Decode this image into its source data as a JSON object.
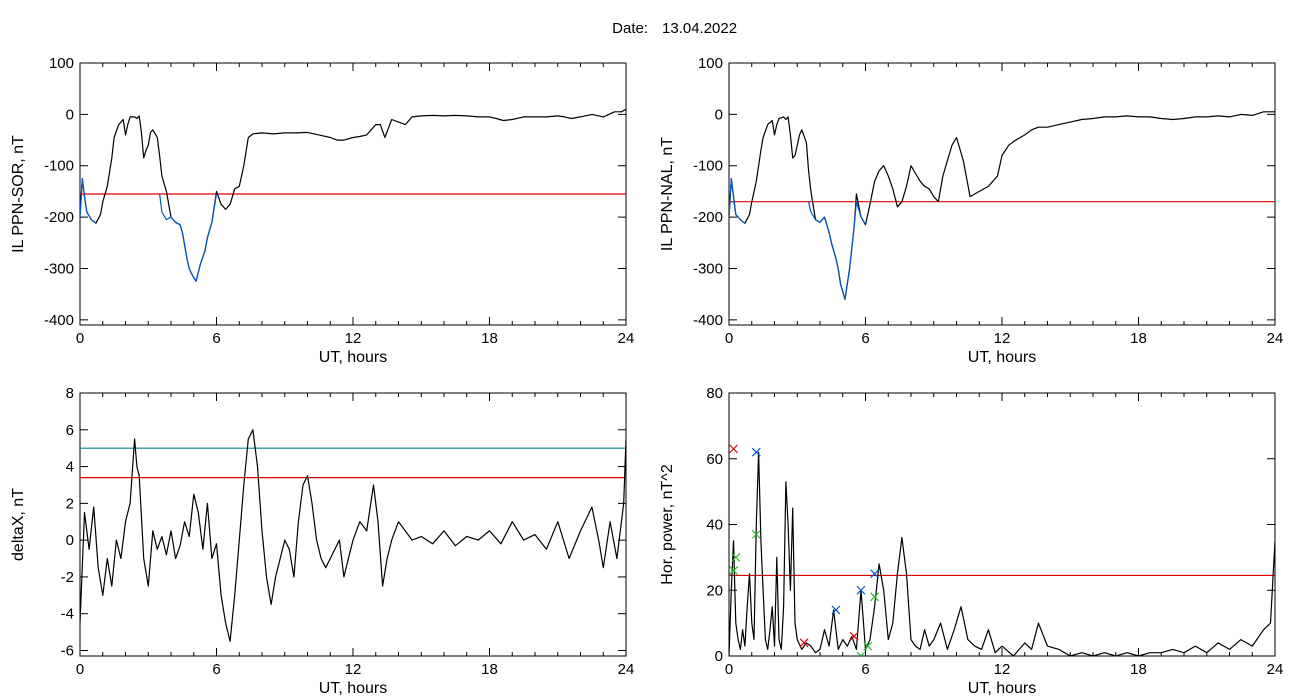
{
  "header": {
    "date_label": "Date:",
    "date_value": "13.04.2022"
  },
  "colors": {
    "primary": "#000000",
    "threshold": "#dd0000",
    "highlight": "#0055cc",
    "teal": "#008b8b",
    "green": "#22bb22"
  },
  "chart_data": [
    {
      "type": "line",
      "xlabel": "UT, hours",
      "ylabel": "IL PPN-SOR, nT",
      "xlim": [
        0,
        24
      ],
      "ylim": [
        -410,
        100
      ],
      "xticks": [
        0,
        6,
        12,
        18,
        24
      ],
      "yticks": [
        -400,
        -300,
        -200,
        -100,
        0,
        100
      ],
      "threshold": -155,
      "series": [
        {
          "color": "#000000",
          "x": [
            0,
            0.1,
            0.2,
            0.3,
            0.5,
            0.7,
            0.9,
            1.0,
            1.2,
            1.4,
            1.5,
            1.7,
            1.9,
            2.0,
            2.1,
            2.2,
            2.4,
            2.5,
            2.6,
            2.7,
            2.8,
            2.9,
            3.0,
            3.1,
            3.2,
            3.4,
            3.5,
            3.6,
            3.8,
            4.0,
            4.2,
            4.4,
            4.5,
            4.7,
            4.8,
            4.9,
            5.1,
            5.3,
            5.5,
            5.6,
            5.8,
            6.0,
            6.2,
            6.4,
            6.6,
            6.8,
            7.0,
            7.2,
            7.4,
            7.6,
            8.0,
            8.5,
            9.0,
            9.5,
            10.0,
            10.5,
            11.0,
            11.3,
            11.6,
            12.0,
            12.3,
            12.6,
            12.8,
            12.9,
            13.0,
            13.2,
            13.4,
            13.7,
            14.0,
            14.3,
            14.6,
            15.0,
            15.5,
            16.0,
            16.5,
            17.0,
            17.5,
            18.0,
            18.3,
            18.6,
            19.0,
            19.5,
            20.0,
            20.5,
            21.0,
            21.3,
            21.6,
            22.0,
            22.5,
            23.0,
            23.5,
            23.8,
            24.0
          ],
          "y": [
            -200,
            -125,
            -160,
            -190,
            -205,
            -212,
            -195,
            -170,
            -140,
            -85,
            -45,
            -20,
            -10,
            -40,
            -20,
            -5,
            -5,
            -8,
            -3,
            -35,
            -85,
            -70,
            -60,
            -35,
            -30,
            -45,
            -80,
            -120,
            -150,
            -200,
            -210,
            -215,
            -230,
            -280,
            -300,
            -310,
            -325,
            -290,
            -265,
            -240,
            -210,
            -150,
            -175,
            -185,
            -175,
            -145,
            -140,
            -100,
            -45,
            -38,
            -36,
            -38,
            -36,
            -36,
            -35,
            -40,
            -45,
            -50,
            -50,
            -45,
            -43,
            -40,
            -30,
            -25,
            -20,
            -20,
            -45,
            -10,
            -15,
            -20,
            -5,
            -3,
            -2,
            -3,
            -2,
            -3,
            -5,
            -5,
            -8,
            -12,
            -10,
            -5,
            -5,
            -5,
            -3,
            -5,
            -8,
            -5,
            0,
            -5,
            5,
            5,
            10
          ]
        },
        {
          "color": "#0055cc",
          "x": [
            0,
            0.1,
            0.2,
            0.3,
            0.5,
            0.7
          ],
          "y": [
            -200,
            -125,
            -160,
            -190,
            -205,
            -212
          ]
        },
        {
          "color": "#0055cc",
          "x": [
            3.5,
            3.6,
            3.8,
            4.0,
            4.2,
            4.4,
            4.5,
            4.7,
            4.8,
            4.9,
            5.1,
            5.3,
            5.5,
            5.6,
            5.8,
            6.0
          ],
          "y": [
            -155,
            -190,
            -205,
            -200,
            -210,
            -215,
            -230,
            -280,
            -300,
            -310,
            -325,
            -290,
            -265,
            -240,
            -210,
            -155
          ]
        }
      ]
    },
    {
      "type": "line",
      "xlabel": "UT, hours",
      "ylabel": "IL PPN-NAL, nT",
      "xlim": [
        0,
        24
      ],
      "ylim": [
        -410,
        100
      ],
      "xticks": [
        0,
        6,
        12,
        18,
        24
      ],
      "yticks": [
        -400,
        -300,
        -200,
        -100,
        0,
        100
      ],
      "threshold": -170,
      "series": [
        {
          "color": "#000000",
          "x": [
            0,
            0.1,
            0.2,
            0.3,
            0.5,
            0.7,
            0.9,
            1.0,
            1.2,
            1.4,
            1.5,
            1.7,
            1.9,
            2.0,
            2.1,
            2.2,
            2.4,
            2.5,
            2.6,
            2.7,
            2.8,
            2.9,
            3.0,
            3.1,
            3.2,
            3.4,
            3.5,
            3.6,
            3.8,
            4.0,
            4.2,
            4.4,
            4.5,
            4.7,
            4.8,
            4.9,
            5.1,
            5.3,
            5.5,
            5.6,
            5.8,
            6.0,
            6.2,
            6.4,
            6.6,
            6.8,
            7.0,
            7.2,
            7.4,
            7.6,
            7.8,
            8.0,
            8.2,
            8.4,
            8.6,
            8.8,
            9.0,
            9.2,
            9.4,
            9.6,
            9.8,
            10.0,
            10.3,
            10.6,
            11.0,
            11.4,
            11.8,
            12.0,
            12.3,
            12.6,
            13.0,
            13.3,
            13.6,
            14.0,
            14.5,
            15.0,
            15.5,
            16.0,
            16.5,
            17.0,
            17.5,
            18.0,
            18.5,
            19.0,
            19.5,
            20.0,
            20.5,
            21.0,
            21.5,
            22.0,
            22.5,
            23.0,
            23.5,
            24.0
          ],
          "y": [
            -200,
            -125,
            -160,
            -195,
            -205,
            -212,
            -195,
            -170,
            -130,
            -70,
            -45,
            -20,
            -12,
            -40,
            -20,
            -8,
            -5,
            -10,
            -5,
            -40,
            -85,
            -80,
            -60,
            -40,
            -30,
            -55,
            -110,
            -150,
            -205,
            -210,
            -200,
            -230,
            -250,
            -280,
            -300,
            -330,
            -360,
            -300,
            -220,
            -155,
            -200,
            -215,
            -175,
            -130,
            -110,
            -100,
            -120,
            -145,
            -180,
            -170,
            -140,
            -100,
            -115,
            -130,
            -140,
            -145,
            -160,
            -170,
            -120,
            -90,
            -60,
            -45,
            -90,
            -160,
            -150,
            -140,
            -120,
            -80,
            -60,
            -50,
            -40,
            -30,
            -25,
            -25,
            -20,
            -15,
            -10,
            -8,
            -5,
            -5,
            -3,
            -5,
            -5,
            -8,
            -10,
            -8,
            -5,
            -5,
            -3,
            -5,
            0,
            -2,
            5,
            5
          ]
        },
        {
          "color": "#0055cc",
          "x": [
            0,
            0.1,
            0.2,
            0.3,
            0.5,
            0.7
          ],
          "y": [
            -200,
            -125,
            -160,
            -195,
            -205,
            -212
          ]
        },
        {
          "color": "#0055cc",
          "x": [
            3.5,
            3.6,
            3.8,
            4.0,
            4.2,
            4.4,
            4.5,
            4.7,
            4.8,
            4.9,
            5.1,
            5.3,
            5.5,
            5.6,
            5.8,
            6.0
          ],
          "y": [
            -170,
            -190,
            -205,
            -210,
            -200,
            -230,
            -250,
            -280,
            -300,
            -330,
            -360,
            -300,
            -220,
            -170,
            -200,
            -215
          ]
        }
      ]
    },
    {
      "type": "line",
      "xlabel": "UT, hours",
      "ylabel": "deltaX, nT",
      "xlim": [
        0,
        24
      ],
      "ylim": [
        -6.3,
        8
      ],
      "xticks": [
        0,
        6,
        12,
        18,
        24
      ],
      "yticks": [
        -6,
        -4,
        -2,
        0,
        2,
        4,
        6,
        8
      ],
      "thresholds": [
        {
          "value": 5,
          "color": "#008b8b"
        },
        {
          "value": 3.4,
          "color": "#dd0000"
        }
      ],
      "series": [
        {
          "color": "#000000",
          "x": [
            0,
            0.2,
            0.4,
            0.6,
            0.8,
            1.0,
            1.2,
            1.4,
            1.6,
            1.8,
            2.0,
            2.2,
            2.4,
            2.5,
            2.6,
            2.8,
            3.0,
            3.2,
            3.4,
            3.6,
            3.8,
            4.0,
            4.2,
            4.4,
            4.6,
            4.8,
            5.0,
            5.2,
            5.4,
            5.6,
            5.8,
            6.0,
            6.2,
            6.4,
            6.6,
            6.8,
            7.0,
            7.2,
            7.4,
            7.6,
            7.8,
            8.0,
            8.2,
            8.4,
            8.6,
            8.8,
            9.0,
            9.2,
            9.4,
            9.6,
            9.8,
            10.0,
            10.2,
            10.4,
            10.6,
            10.8,
            11.0,
            11.2,
            11.4,
            11.6,
            11.8,
            12.0,
            12.3,
            12.6,
            12.9,
            13.1,
            13.3,
            13.5,
            13.7,
            14.0,
            14.3,
            14.6,
            15.0,
            15.5,
            16.0,
            16.5,
            17.0,
            17.5,
            18.0,
            18.5,
            19.0,
            19.5,
            20.0,
            20.5,
            21.0,
            21.5,
            22.0,
            22.5,
            22.8,
            23.0,
            23.3,
            23.6,
            23.9,
            24.0
          ],
          "y": [
            -4.5,
            1.5,
            -0.5,
            1.8,
            -1.5,
            -3,
            -1,
            -2.5,
            0,
            -1,
            1,
            2,
            5.5,
            4,
            3.5,
            -1,
            -2.5,
            0.5,
            -0.5,
            0.2,
            -0.8,
            0.5,
            -1,
            -0.3,
            1,
            0.2,
            2.5,
            1.5,
            -0.5,
            2,
            -1,
            -0.2,
            -3,
            -4.5,
            -5.5,
            -3,
            0,
            3,
            5.5,
            6,
            4,
            0.5,
            -2,
            -3.5,
            -2,
            -1,
            0,
            -0.5,
            -2,
            1,
            3,
            3.5,
            2,
            0,
            -1,
            -1.5,
            -1,
            -0.5,
            0,
            -2,
            -1,
            0,
            1,
            0.5,
            3,
            1,
            -2.5,
            -1,
            0,
            1,
            0.5,
            0,
            0.2,
            -0.2,
            0.5,
            -0.3,
            0.2,
            0,
            0.5,
            -0.2,
            1,
            0,
            0.3,
            -0.5,
            1,
            -1,
            0.5,
            1.8,
            0,
            -1.5,
            1,
            -1,
            2,
            5.5
          ]
        }
      ]
    },
    {
      "type": "line",
      "xlabel": "UT, hours",
      "ylabel": "Hor. power, nT^2",
      "xlim": [
        0,
        24
      ],
      "ylim": [
        0,
        80
      ],
      "xticks": [
        0,
        6,
        12,
        18,
        24
      ],
      "yticks": [
        0,
        20,
        40,
        60,
        80
      ],
      "threshold": 24.5,
      "series": [
        {
          "color": "#000000",
          "x": [
            0,
            0.1,
            0.2,
            0.3,
            0.4,
            0.5,
            0.6,
            0.7,
            0.8,
            0.9,
            1.0,
            1.1,
            1.2,
            1.3,
            1.4,
            1.5,
            1.6,
            1.7,
            1.8,
            1.9,
            2.0,
            2.1,
            2.2,
            2.3,
            2.4,
            2.5,
            2.6,
            2.7,
            2.8,
            2.9,
            3.0,
            3.2,
            3.4,
            3.6,
            3.8,
            4.0,
            4.2,
            4.4,
            4.6,
            4.8,
            5.0,
            5.2,
            5.4,
            5.6,
            5.8,
            6.0,
            6.2,
            6.4,
            6.6,
            6.8,
            7.0,
            7.2,
            7.4,
            7.6,
            7.8,
            8.0,
            8.2,
            8.4,
            8.6,
            8.8,
            9.0,
            9.3,
            9.6,
            9.9,
            10.2,
            10.5,
            10.8,
            11.1,
            11.4,
            11.7,
            12.0,
            12.5,
            13.0,
            13.3,
            13.6,
            14.0,
            14.5,
            15.0,
            15.5,
            16.0,
            16.5,
            17.0,
            17.5,
            18.0,
            18.5,
            19.0,
            19.5,
            20.0,
            20.5,
            21.0,
            21.5,
            22.0,
            22.5,
            23.0,
            23.5,
            23.8,
            24.0
          ],
          "y": [
            0,
            20,
            35,
            10,
            5,
            2,
            8,
            3,
            15,
            25,
            10,
            5,
            40,
            62,
            35,
            20,
            5,
            2,
            8,
            15,
            3,
            30,
            5,
            2,
            15,
            53,
            40,
            20,
            45,
            10,
            5,
            2,
            4,
            3,
            1,
            2,
            8,
            3,
            14,
            2,
            5,
            3,
            6,
            2,
            20,
            2,
            5,
            15,
            28,
            20,
            5,
            10,
            25,
            36,
            25,
            5,
            3,
            2,
            8,
            3,
            5,
            10,
            2,
            8,
            15,
            5,
            3,
            2,
            8,
            1,
            3,
            0,
            4,
            2,
            10,
            3,
            2,
            0,
            1,
            0,
            1,
            0,
            1,
            0,
            1,
            1,
            2,
            1,
            3,
            1,
            4,
            2,
            5,
            3,
            8,
            10,
            35
          ]
        }
      ],
      "markers": [
        {
          "x": 1.2,
          "y": 62,
          "color": "#0055cc"
        },
        {
          "x": 4.7,
          "y": 14,
          "color": "#0055cc"
        },
        {
          "x": 5.8,
          "y": 20,
          "color": "#0055cc"
        },
        {
          "x": 6.4,
          "y": 25,
          "color": "#0055cc"
        },
        {
          "x": 1.2,
          "y": 37,
          "color": "#22bb22"
        },
        {
          "x": 0.3,
          "y": 30,
          "color": "#22bb22"
        },
        {
          "x": 0.2,
          "y": 26,
          "color": "#22bb22"
        },
        {
          "x": 5.8,
          "y": 0,
          "color": "#22bb22"
        },
        {
          "x": 6.1,
          "y": 3,
          "color": "#22bb22"
        },
        {
          "x": 6.4,
          "y": 18,
          "color": "#22bb22"
        },
        {
          "x": 0.2,
          "y": 63,
          "color": "#dd0000"
        },
        {
          "x": 3.3,
          "y": 4,
          "color": "#dd0000"
        },
        {
          "x": 5.5,
          "y": 6,
          "color": "#dd0000"
        }
      ]
    }
  ]
}
